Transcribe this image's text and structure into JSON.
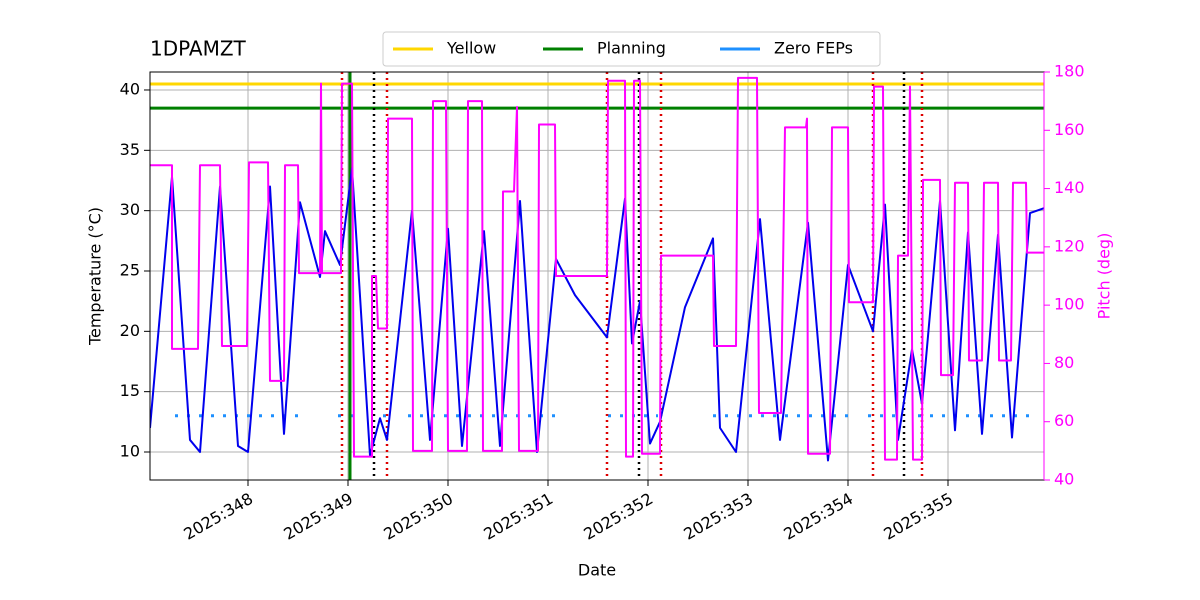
{
  "chart_data": {
    "type": "line",
    "title": "1DPAMZT",
    "xlabel": "Date",
    "ylabel": "Temperature (°C)",
    "y2label": "Pitch (deg)",
    "xlim": [
      347.02,
      355.96
    ],
    "ylim": [
      7.68,
      41.49
    ],
    "y2lim": [
      40,
      180
    ],
    "xticks": [
      {
        "value": 348,
        "label": "2025:348"
      },
      {
        "value": 349,
        "label": "2025:349"
      },
      {
        "value": 350,
        "label": "2025:350"
      },
      {
        "value": 351,
        "label": "2025:351"
      },
      {
        "value": 352,
        "label": "2025:352"
      },
      {
        "value": 353,
        "label": "2025:353"
      },
      {
        "value": 354,
        "label": "2025:354"
      },
      {
        "value": 355,
        "label": "2025:355"
      }
    ],
    "yticks": [
      10,
      15,
      20,
      25,
      30,
      35,
      40
    ],
    "y2ticks": [
      40,
      60,
      80,
      100,
      120,
      140,
      160,
      180
    ],
    "grid": true,
    "legend": "top",
    "y2color": "#ff00ff",
    "limits": [
      {
        "name": "Yellow",
        "color": "#ffd700",
        "value": 40.5
      },
      {
        "name": "Planning",
        "color": "#008000",
        "value": 38.5
      }
    ],
    "zero_feps": {
      "name": "Zero FEPs",
      "color": "#1e90ff",
      "value": 13,
      "ranges": [
        [
          347.27,
          348.5
        ],
        [
          348.9,
          349.1
        ],
        [
          349.35,
          349.45
        ],
        [
          349.6,
          351.1
        ],
        [
          351.6,
          352.1
        ],
        [
          352.65,
          354.0
        ],
        [
          354.2,
          354.5
        ],
        [
          354.7,
          355.85
        ]
      ]
    },
    "vlines": [
      {
        "color": "#dd0000",
        "dash": "2,4",
        "x": [
          348.94,
          349.39,
          351.59,
          352.13,
          354.25,
          354.74
        ]
      },
      {
        "color": "#000000",
        "dash": "2,4",
        "x": [
          349.26,
          351.91,
          354.56
        ]
      },
      {
        "color": "#008000",
        "dash": "",
        "x": [
          349.02
        ]
      }
    ],
    "series": [
      {
        "color": "#0000ee",
        "axis": "y",
        "x": [
          347.02,
          347.24,
          347.42,
          347.52,
          347.72,
          347.9,
          348.0,
          348.22,
          348.36,
          348.52,
          348.72,
          348.77,
          348.92,
          349.04,
          349.22,
          349.32,
          349.39,
          349.64,
          349.82,
          350.0,
          350.14,
          350.36,
          350.52,
          350.72,
          350.89,
          351.08,
          351.27,
          351.59,
          351.77,
          351.84,
          351.92,
          352.02,
          352.12,
          352.37,
          352.65,
          352.72,
          352.88,
          353.12,
          353.32,
          353.6,
          353.8,
          354.0,
          354.25,
          354.37,
          354.5,
          354.64,
          354.74,
          354.92,
          355.07,
          355.2,
          355.34,
          355.5,
          355.64,
          355.82,
          355.96
        ],
        "values": [
          12,
          32.8,
          11,
          10,
          32,
          10.5,
          10,
          32,
          11.5,
          30.7,
          24.5,
          28.3,
          25.5,
          33.5,
          9.7,
          12.8,
          11,
          30,
          11,
          28.5,
          10.5,
          28.3,
          10.5,
          30.8,
          10,
          26,
          23,
          19.5,
          31,
          19,
          22.5,
          10.7,
          12.5,
          22,
          27.7,
          12,
          10,
          29.3,
          11,
          29,
          9.3,
          25.5,
          20,
          30.5,
          11,
          18.5,
          14,
          30.8,
          11.8,
          28.2,
          11.5,
          28,
          11.2,
          29.8,
          30.2
        ]
      },
      {
        "color": "#ff00ff",
        "axis": "y2",
        "x": [
          347.02,
          347.24,
          347.24,
          347.5,
          347.52,
          347.72,
          347.74,
          347.99,
          348.01,
          348.2,
          348.22,
          348.36,
          348.37,
          348.5,
          348.51,
          348.72,
          348.73,
          348.74,
          348.93,
          348.94,
          349.04,
          349.06,
          349.24,
          349.24,
          349.28,
          349.3,
          349.39,
          349.4,
          349.64,
          349.65,
          349.84,
          349.85,
          349.98,
          350.0,
          350.19,
          350.2,
          350.34,
          350.35,
          350.54,
          350.55,
          350.66,
          350.69,
          350.71,
          350.9,
          350.91,
          351.07,
          351.08,
          351.59,
          351.6,
          351.77,
          351.78,
          351.85,
          351.86,
          351.92,
          351.94,
          352.12,
          352.13,
          352.65,
          352.66,
          352.88,
          352.9,
          353.09,
          353.11,
          353.33,
          353.37,
          353.58,
          353.59,
          353.6,
          353.82,
          353.84,
          354.0,
          354.01,
          354.25,
          354.26,
          354.35,
          354.37,
          354.49,
          354.5,
          354.6,
          354.62,
          354.65,
          354.74,
          354.75,
          354.92,
          354.93,
          355.05,
          355.07,
          355.2,
          355.21,
          355.34,
          355.36,
          355.5,
          355.51,
          355.63,
          355.65,
          355.78,
          355.79,
          355.96
        ],
        "values": [
          148,
          148,
          85,
          85,
          148,
          148,
          86,
          86,
          149,
          149,
          74,
          74,
          148,
          148,
          111,
          111,
          176,
          111,
          111,
          176,
          176,
          48,
          48,
          110,
          110,
          92,
          92,
          164,
          164,
          50,
          50,
          170,
          170,
          50,
          50,
          170,
          170,
          50,
          50,
          139,
          139,
          168,
          50,
          50,
          162,
          162,
          110,
          110,
          177,
          177,
          48,
          48,
          177,
          177,
          49,
          49,
          117,
          117,
          86,
          86,
          178,
          178,
          63,
          63,
          161,
          161,
          164,
          49,
          49,
          161,
          161,
          101,
          101,
          175,
          175,
          47,
          47,
          117,
          117,
          175,
          47,
          47,
          143,
          143,
          76,
          76,
          142,
          142,
          81,
          81,
          142,
          142,
          81,
          81,
          142,
          142,
          118,
          118
        ]
      }
    ]
  }
}
